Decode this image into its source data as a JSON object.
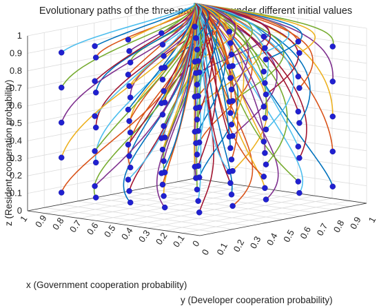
{
  "chart_data": {
    "type": "line",
    "subtype": "3d-trajectories",
    "title": "Evolutionary paths of the three-party game under different initial values",
    "xlabel": "x (Government cooperation probability)",
    "ylabel": "y (Developer cooperation probability)",
    "zlabel": "z (Resident cooperation probability)",
    "xlim": [
      0,
      1
    ],
    "ylim": [
      0,
      1
    ],
    "zlim": [
      0,
      1
    ],
    "x_ticks": [
      "0",
      "0.1",
      "0.2",
      "0.3",
      "0.4",
      "0.5",
      "0.6",
      "0.7",
      "0.8",
      "0.9",
      "1"
    ],
    "y_ticks": [
      "0",
      "0.1",
      "0.2",
      "0.3",
      "0.4",
      "0.5",
      "0.6",
      "0.7",
      "0.8",
      "0.9",
      "1"
    ],
    "z_ticks": [
      "0",
      "0.1",
      "0.2",
      "0.3",
      "0.4",
      "0.5",
      "0.6",
      "0.7",
      "0.8",
      "0.9",
      "1"
    ],
    "grid": true,
    "initial_x": [
      0.1,
      0.3,
      0.5,
      0.7,
      0.9
    ],
    "initial_y": [
      0.1,
      0.3,
      0.5,
      0.7,
      0.9
    ],
    "initial_z": [
      0.1,
      0.3,
      0.5,
      0.7,
      0.9
    ],
    "equilibrium": [
      1,
      1,
      1
    ],
    "start_marker_color": "#2020d0",
    "line_colors": [
      "#0072bd",
      "#d95319",
      "#edb120",
      "#7e2f8e",
      "#77ac30",
      "#4dbeee",
      "#a2142f"
    ]
  }
}
